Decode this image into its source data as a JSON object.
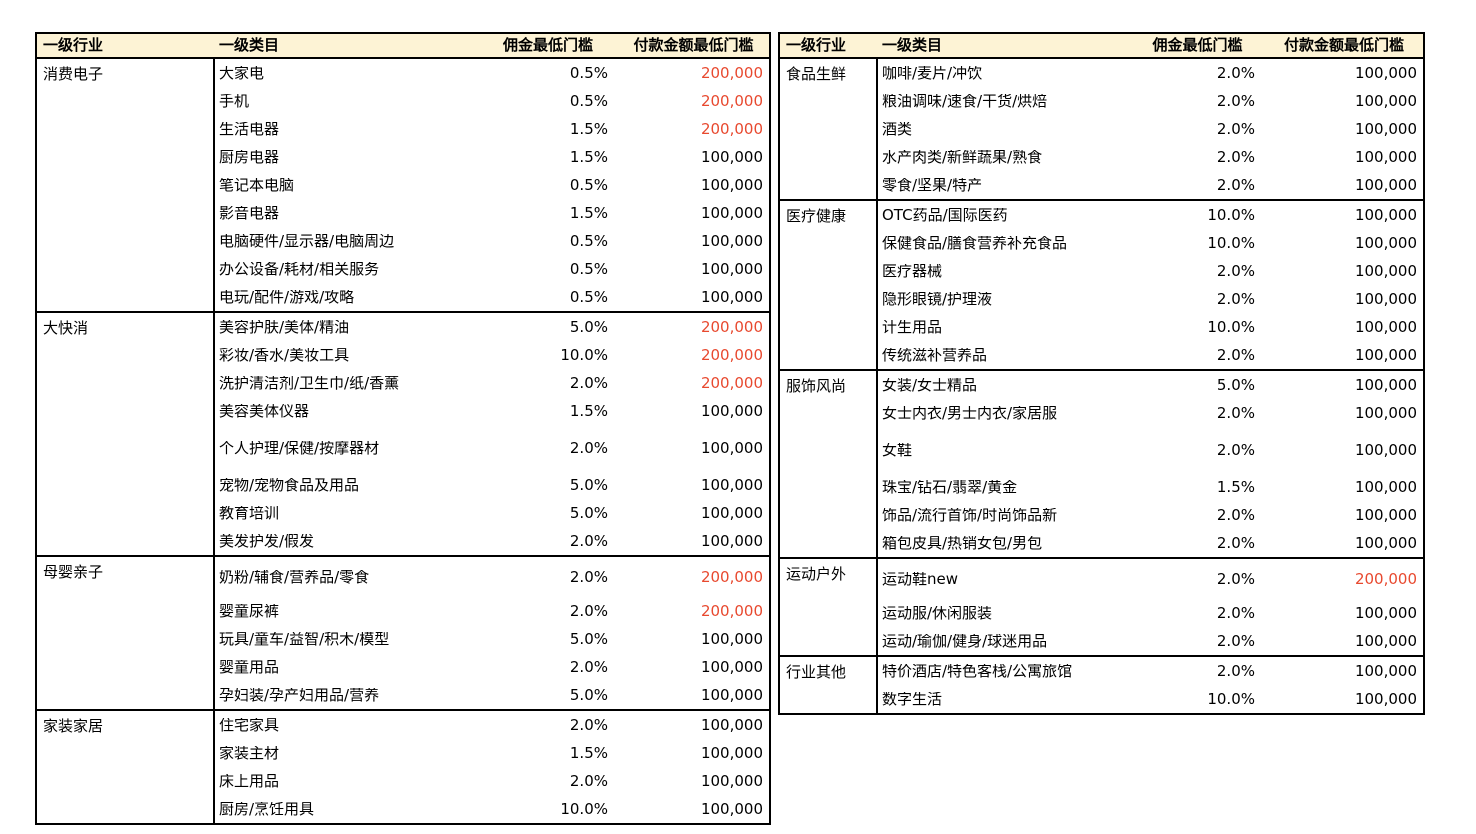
{
  "headers": {
    "industry": "一级行业",
    "category": "一级类目",
    "commission": "佣金最低门槛",
    "payment": "付款金额最低门槛"
  },
  "colors": {
    "header_bg": "#fdf3d5",
    "highlight_red": "#e8492f",
    "border": "#000000"
  },
  "tables": {
    "left": {
      "groups": [
        {
          "industry": "消费电子",
          "rows": [
            {
              "category": "大家电",
              "commission": "0.5%",
              "payment": "200,000",
              "highlight": true
            },
            {
              "category": "手机",
              "commission": "0.5%",
              "payment": "200,000",
              "highlight": true
            },
            {
              "category": "生活电器",
              "commission": "1.5%",
              "payment": "200,000",
              "highlight": true
            },
            {
              "category": "厨房电器",
              "commission": "1.5%",
              "payment": "100,000",
              "highlight": false
            },
            {
              "category": "笔记本电脑",
              "commission": "0.5%",
              "payment": "100,000",
              "highlight": false
            },
            {
              "category": "影音电器",
              "commission": "1.5%",
              "payment": "100,000",
              "highlight": false
            },
            {
              "category": "电脑硬件/显示器/电脑周边",
              "commission": "0.5%",
              "payment": "100,000",
              "highlight": false
            },
            {
              "category": "办公设备/耗材/相关服务",
              "commission": "0.5%",
              "payment": "100,000",
              "highlight": false
            },
            {
              "category": "电玩/配件/游戏/攻略",
              "commission": "0.5%",
              "payment": "100,000",
              "highlight": false
            }
          ]
        },
        {
          "industry": "大快消",
          "rows": [
            {
              "category": "美容护肤/美体/精油",
              "commission": "5.0%",
              "payment": "200,000",
              "highlight": true
            },
            {
              "category": "彩妆/香水/美妆工具",
              "commission": "10.0%",
              "payment": "200,000",
              "highlight": true
            },
            {
              "category": "洗护清洁剂/卫生巾/纸/香薰",
              "commission": "2.0%",
              "payment": "200,000",
              "highlight": true
            },
            {
              "category": "美容美体仪器",
              "commission": "1.5%",
              "payment": "100,000",
              "highlight": false
            },
            {
              "category": "个人护理/保健/按摩器材",
              "commission": "2.0%",
              "payment": "100,000",
              "highlight": false
            },
            {
              "category": "宠物/宠物食品及用品",
              "commission": "5.0%",
              "payment": "100,000",
              "highlight": false
            },
            {
              "category": "教育培训",
              "commission": "5.0%",
              "payment": "100,000",
              "highlight": false
            },
            {
              "category": "美发护发/假发",
              "commission": "2.0%",
              "payment": "100,000",
              "highlight": false
            }
          ]
        },
        {
          "industry": "母婴亲子",
          "rows": [
            {
              "category": "奶粉/辅食/营养品/零食",
              "commission": "2.0%",
              "payment": "200,000",
              "highlight": true
            },
            {
              "category": "婴童尿裤",
              "commission": "2.0%",
              "payment": "200,000",
              "highlight": true
            },
            {
              "category": "玩具/童车/益智/积木/模型",
              "commission": "5.0%",
              "payment": "100,000",
              "highlight": false
            },
            {
              "category": "婴童用品",
              "commission": "2.0%",
              "payment": "100,000",
              "highlight": false
            },
            {
              "category": "孕妇装/孕产妇用品/营养",
              "commission": "5.0%",
              "payment": "100,000",
              "highlight": false
            }
          ]
        },
        {
          "industry": "家装家居",
          "rows": [
            {
              "category": "住宅家具",
              "commission": "2.0%",
              "payment": "100,000",
              "highlight": false
            },
            {
              "category": "家装主材",
              "commission": "1.5%",
              "payment": "100,000",
              "highlight": false
            },
            {
              "category": "床上用品",
              "commission": "2.0%",
              "payment": "100,000",
              "highlight": false
            },
            {
              "category": "厨房/烹饪用具",
              "commission": "10.0%",
              "payment": "100,000",
              "highlight": false
            }
          ]
        }
      ]
    },
    "right": {
      "groups": [
        {
          "industry": "食品生鲜",
          "rows": [
            {
              "category": "咖啡/麦片/冲饮",
              "commission": "2.0%",
              "payment": "100,000",
              "highlight": false
            },
            {
              "category": "粮油调味/速食/干货/烘焙",
              "commission": "2.0%",
              "payment": "100,000",
              "highlight": false
            },
            {
              "category": "酒类",
              "commission": "2.0%",
              "payment": "100,000",
              "highlight": false
            },
            {
              "category": "水产肉类/新鲜蔬果/熟食",
              "commission": "2.0%",
              "payment": "100,000",
              "highlight": false
            },
            {
              "category": "零食/坚果/特产",
              "commission": "2.0%",
              "payment": "100,000",
              "highlight": false
            }
          ]
        },
        {
          "industry": "医疗健康",
          "rows": [
            {
              "category": "OTC药品/国际医药",
              "commission": "10.0%",
              "payment": "100,000",
              "highlight": false
            },
            {
              "category": "保健食品/膳食营养补充食品",
              "commission": "10.0%",
              "payment": "100,000",
              "highlight": false
            },
            {
              "category": "医疗器械",
              "commission": "2.0%",
              "payment": "100,000",
              "highlight": false
            },
            {
              "category": "隐形眼镜/护理液",
              "commission": "2.0%",
              "payment": "100,000",
              "highlight": false
            },
            {
              "category": "计生用品",
              "commission": "10.0%",
              "payment": "100,000",
              "highlight": false
            },
            {
              "category": "传统滋补营养品",
              "commission": "2.0%",
              "payment": "100,000",
              "highlight": false
            }
          ]
        },
        {
          "industry": "服饰风尚",
          "rows": [
            {
              "category": "女装/女士精品",
              "commission": "5.0%",
              "payment": "100,000",
              "highlight": false
            },
            {
              "category": "女士内衣/男士内衣/家居服",
              "commission": "2.0%",
              "payment": "100,000",
              "highlight": false
            },
            {
              "category": "女鞋",
              "commission": "2.0%",
              "payment": "100,000",
              "highlight": false
            },
            {
              "category": "珠宝/钻石/翡翠/黄金",
              "commission": "1.5%",
              "payment": "100,000",
              "highlight": false
            },
            {
              "category": "饰品/流行首饰/时尚饰品新",
              "commission": "2.0%",
              "payment": "100,000",
              "highlight": false
            },
            {
              "category": "箱包皮具/热销女包/男包",
              "commission": "2.0%",
              "payment": "100,000",
              "highlight": false
            }
          ]
        },
        {
          "industry": "运动户外",
          "rows": [
            {
              "category": "运动鞋new",
              "commission": "2.0%",
              "payment": "200,000",
              "highlight": true
            },
            {
              "category": "运动服/休闲服装",
              "commission": "2.0%",
              "payment": "100,000",
              "highlight": false
            },
            {
              "category": "运动/瑜伽/健身/球迷用品",
              "commission": "2.0%",
              "payment": "100,000",
              "highlight": false
            }
          ]
        },
        {
          "industry": "行业其他",
          "rows": [
            {
              "category": "特价酒店/特色客栈/公寓旅馆",
              "commission": "2.0%",
              "payment": "100,000",
              "highlight": false
            },
            {
              "category": "数字生活",
              "commission": "10.0%",
              "payment": "100,000",
              "highlight": false
            }
          ]
        }
      ]
    }
  }
}
